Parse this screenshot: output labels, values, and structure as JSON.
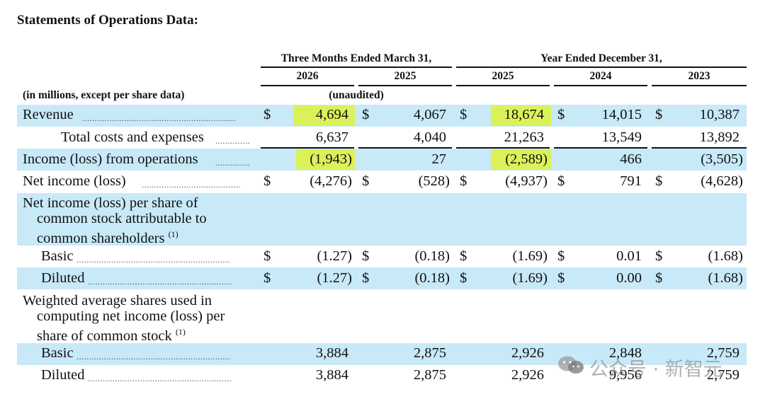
{
  "title": "Statements of Operations Data:",
  "header": {
    "group1": "Three Months Ended March 31,",
    "group2": "Year Ended December 31,",
    "years": [
      "2026",
      "2025",
      "2025",
      "2024",
      "2023"
    ],
    "units_note": "(in millions, except per share data)",
    "unaudited": "(unaudited)"
  },
  "currency_symbol": "$",
  "rows": {
    "revenue": {
      "label": "Revenue",
      "values": [
        "4,694",
        "4,067",
        "18,674",
        "14,015",
        "10,387"
      ]
    },
    "total_costs": {
      "label": "Total costs and expenses",
      "values": [
        "6,637",
        "4,040",
        "21,263",
        "13,549",
        "13,892"
      ]
    },
    "income_ops": {
      "label": "Income (loss) from operations",
      "values": [
        "(1,943)",
        "27",
        "(2,589)",
        "466",
        "(3,505)"
      ]
    },
    "net_income": {
      "label": "Net income (loss)",
      "values": [
        "(4,276)",
        "(528)",
        "(4,937)",
        "791",
        "(4,628)"
      ]
    },
    "eps_header": {
      "line1": "Net income (loss) per share of",
      "line2": "common stock attributable to",
      "line3": "common shareholders",
      "footnote": "(1)"
    },
    "eps_basic": {
      "label": "Basic",
      "values": [
        "(1.27)",
        "(0.18)",
        "(1.69)",
        "0.01",
        "(1.68)"
      ]
    },
    "eps_diluted": {
      "label": "Diluted",
      "values": [
        "(1.27)",
        "(0.18)",
        "(1.69)",
        "0.00",
        "(1.68)"
      ]
    },
    "shares_header": {
      "line1": "Weighted average shares used in",
      "line2": "computing net income (loss) per",
      "line3": "share of common stock",
      "footnote": "(1)"
    },
    "shares_basic": {
      "label": "Basic",
      "values": [
        "3,884",
        "2,875",
        "2,926",
        "2,848",
        "2,759"
      ]
    },
    "shares_diluted": {
      "label": "Diluted",
      "values": [
        "3,884",
        "2,875",
        "2,926",
        "9,956",
        "2,759"
      ]
    }
  },
  "watermark": {
    "text": "公众号 · 新智元",
    "icon": "wechat-icon"
  },
  "colors": {
    "band": "#c8e9f7",
    "highlight": "#dbf15a"
  }
}
